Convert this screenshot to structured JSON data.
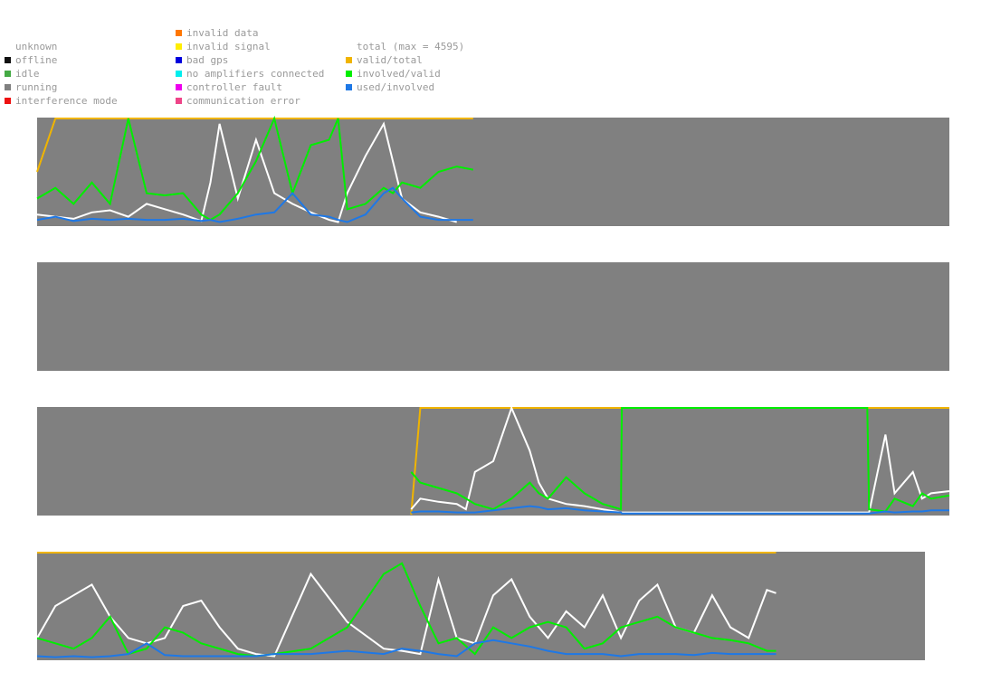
{
  "legend": {
    "columns": [
      {
        "items": [
          {
            "label": "unknown"
          },
          {
            "label": "offline",
            "color": "#111111"
          },
          {
            "label": "idle",
            "color": "#44aa44"
          },
          {
            "label": "running",
            "color": "#808080"
          },
          {
            "label": "interference mode",
            "color": "#ee1111"
          }
        ]
      },
      {
        "items": [
          {
            "label": "invalid data",
            "color": "#ff7700"
          },
          {
            "label": "invalid signal",
            "color": "#ffee00"
          },
          {
            "label": "bad gps",
            "color": "#0000dd"
          },
          {
            "label": "no amplifiers connected",
            "color": "#00eeee"
          },
          {
            "label": "controller fault",
            "color": "#ee00ee"
          },
          {
            "label": "communication error",
            "color": "#ee4488"
          }
        ]
      },
      {
        "items": [
          {
            "label": "total (max = 4595)"
          },
          {
            "label": "valid/total",
            "color": "#f0b400"
          },
          {
            "label": "involved/valid",
            "color": "#00ee00"
          },
          {
            "label": "used/involved",
            "color": "#1e78e6"
          }
        ]
      }
    ]
  },
  "panels": [
    {
      "x": [
        0,
        2,
        4,
        6,
        8,
        10,
        12,
        14,
        16,
        18,
        19,
        20,
        22,
        24,
        26,
        28,
        30,
        32,
        33,
        34,
        36,
        38,
        39,
        40,
        42,
        44,
        46,
        47.8
      ],
      "series": [
        {
          "color": "#f0b400",
          "values": [
            50,
            100,
            100,
            100,
            100,
            100,
            100,
            100,
            100,
            100,
            100,
            100,
            100,
            100,
            100,
            100,
            100,
            100,
            100,
            100,
            100,
            100,
            100,
            100,
            100,
            100,
            100,
            100
          ]
        },
        {
          "color": "#ffffff",
          "values": [
            10,
            8,
            6,
            12,
            14,
            8,
            20,
            15,
            10,
            4,
            40,
            95,
            25,
            80,
            30,
            20,
            12,
            5,
            3,
            30,
            65,
            95,
            60,
            25,
            12,
            8,
            3,
            null
          ]
        },
        {
          "color": "#00ee00",
          "values": [
            25,
            35,
            20,
            40,
            20,
            100,
            30,
            28,
            30,
            10,
            5,
            10,
            30,
            60,
            100,
            30,
            75,
            80,
            100,
            15,
            20,
            35,
            30,
            40,
            35,
            50,
            55,
            52
          ]
        },
        {
          "color": "#1e78e6",
          "values": [
            5,
            8,
            4,
            6,
            5,
            6,
            5,
            5,
            6,
            4,
            5,
            3,
            6,
            10,
            12,
            30,
            10,
            8,
            5,
            3,
            10,
            30,
            35,
            25,
            8,
            5,
            5,
            5
          ]
        }
      ]
    },
    {
      "x": [],
      "series": []
    },
    {
      "x": [
        41,
        42,
        44,
        46,
        47,
        48,
        50,
        52,
        54,
        55,
        56,
        58,
        60,
        62,
        64,
        64.1,
        70,
        80,
        91,
        91.2,
        93,
        94,
        96,
        97,
        98,
        100
      ],
      "series": [
        {
          "color": "#f0b400",
          "values": [
            0,
            100,
            100,
            100,
            100,
            100,
            100,
            100,
            100,
            100,
            100,
            100,
            100,
            100,
            100,
            100,
            100,
            100,
            100,
            100,
            100,
            100,
            100,
            100,
            100,
            100
          ]
        },
        {
          "color": "#ffffff",
          "values": [
            5,
            15,
            12,
            10,
            5,
            40,
            50,
            100,
            60,
            30,
            15,
            10,
            8,
            5,
            2,
            2,
            2,
            2,
            2,
            2,
            75,
            20,
            40,
            15,
            20,
            22
          ]
        },
        {
          "color": "#00ee00",
          "values": [
            40,
            30,
            25,
            20,
            15,
            10,
            5,
            15,
            30,
            20,
            15,
            35,
            20,
            10,
            5,
            100,
            100,
            100,
            100,
            5,
            3,
            15,
            8,
            20,
            15,
            18
          ]
        },
        {
          "color": "#1e78e6",
          "values": [
            2,
            3,
            3,
            2,
            2,
            2,
            4,
            6,
            8,
            7,
            5,
            6,
            4,
            3,
            2,
            1,
            1,
            1,
            1,
            1,
            3,
            2,
            3,
            3,
            4,
            4
          ]
        }
      ]
    },
    {
      "x": [
        0,
        2,
        4,
        6,
        8,
        10,
        12,
        14,
        16,
        18,
        20,
        22,
        24,
        26,
        30,
        34,
        38,
        40,
        42,
        44,
        46,
        48,
        50,
        52,
        54,
        56,
        58,
        60,
        62,
        64,
        66,
        68,
        70,
        72,
        74,
        76,
        78,
        80,
        81
      ],
      "series": [
        {
          "color": "#f0b400",
          "values": [
            100,
            100,
            100,
            100,
            100,
            100,
            100,
            100,
            100,
            100,
            100,
            100,
            100,
            100,
            100,
            100,
            100,
            100,
            100,
            100,
            100,
            100,
            100,
            100,
            100,
            100,
            100,
            100,
            100,
            100,
            100,
            100,
            100,
            100,
            100,
            100,
            100,
            100,
            100
          ]
        },
        {
          "color": "#ffffff",
          "values": [
            20,
            50,
            60,
            70,
            40,
            20,
            15,
            20,
            50,
            55,
            30,
            10,
            5,
            3,
            80,
            35,
            10,
            8,
            5,
            75,
            20,
            15,
            60,
            75,
            40,
            20,
            45,
            30,
            60,
            20,
            55,
            70,
            30,
            25,
            60,
            30,
            20,
            65,
            62
          ]
        },
        {
          "color": "#00ee00",
          "values": [
            20,
            15,
            10,
            20,
            40,
            5,
            10,
            30,
            25,
            15,
            10,
            5,
            3,
            5,
            10,
            30,
            80,
            90,
            50,
            15,
            20,
            5,
            30,
            20,
            30,
            35,
            30,
            10,
            15,
            30,
            35,
            40,
            30,
            25,
            20,
            18,
            15,
            8,
            8
          ]
        },
        {
          "color": "#1e78e6",
          "values": [
            3,
            2,
            3,
            2,
            3,
            5,
            15,
            4,
            3,
            3,
            3,
            3,
            3,
            5,
            5,
            8,
            5,
            10,
            8,
            5,
            3,
            15,
            18,
            15,
            12,
            8,
            5,
            5,
            5,
            3,
            5,
            5,
            5,
            4,
            6,
            5,
            5,
            5,
            5
          ]
        }
      ]
    }
  ]
}
